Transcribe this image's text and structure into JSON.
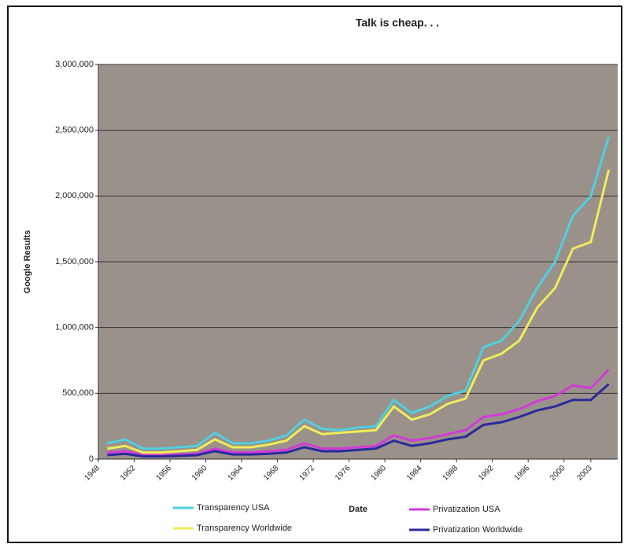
{
  "chart_data": {
    "type": "line",
    "title": "Talk is cheap. . .",
    "x_label": "Date",
    "y_label": "Google Results",
    "x": [
      1949,
      1951,
      1953,
      1955,
      1957,
      1959,
      1961,
      1963,
      1965,
      1967,
      1969,
      1971,
      1973,
      1975,
      1977,
      1979,
      1981,
      1983,
      1985,
      1987,
      1989,
      1991,
      1993,
      1995,
      1997,
      1999,
      2001,
      2003,
      2005
    ],
    "xlim": [
      1948,
      2006
    ],
    "xticks": [
      1948,
      1952,
      1956,
      1960,
      1964,
      1968,
      1972,
      1976,
      1980,
      1984,
      1988,
      1992,
      1996,
      2000,
      2003
    ],
    "ylim": [
      0,
      3000000
    ],
    "yticks": [
      0,
      {
        "value": 500000,
        "label": "500,000"
      },
      {
        "value": 1000000,
        "label": "1,000,000"
      },
      {
        "value": 1500000,
        "label": "1,500,000"
      },
      {
        "value": 2000000,
        "label": "2,000,000"
      },
      {
        "value": 2500000,
        "label": "2,500,000"
      },
      {
        "value": 3000000,
        "label": "3,000,000"
      }
    ],
    "grid": true,
    "series": [
      {
        "name": "Transparency USA",
        "color": "#4fd0e0",
        "values": [
          120000,
          150000,
          80000,
          80000,
          90000,
          100000,
          200000,
          120000,
          120000,
          140000,
          180000,
          300000,
          230000,
          220000,
          240000,
          250000,
          450000,
          350000,
          400000,
          480000,
          520000,
          850000,
          900000,
          1050000,
          1300000,
          1500000,
          1850000,
          2000000,
          2450000
        ]
      },
      {
        "name": "Transparency Worldwide",
        "color": "#f0ec5a",
        "values": [
          80000,
          100000,
          50000,
          50000,
          60000,
          70000,
          150000,
          90000,
          90000,
          110000,
          140000,
          250000,
          190000,
          200000,
          210000,
          220000,
          400000,
          300000,
          340000,
          420000,
          460000,
          750000,
          800000,
          900000,
          1150000,
          1300000,
          1600000,
          1650000,
          2200000
        ]
      },
      {
        "name": "Privatization USA",
        "color": "#d23ad8",
        "values": [
          50000,
          60000,
          30000,
          30000,
          35000,
          40000,
          80000,
          50000,
          50000,
          60000,
          70000,
          120000,
          80000,
          80000,
          90000,
          100000,
          180000,
          140000,
          160000,
          190000,
          220000,
          320000,
          340000,
          380000,
          440000,
          480000,
          560000,
          540000,
          680000
        ]
      },
      {
        "name": "Privatization Worldwide",
        "color": "#2a2a9a",
        "values": [
          30000,
          40000,
          20000,
          20000,
          25000,
          30000,
          60000,
          35000,
          35000,
          40000,
          50000,
          90000,
          60000,
          60000,
          70000,
          80000,
          140000,
          100000,
          120000,
          150000,
          170000,
          260000,
          280000,
          320000,
          370000,
          400000,
          450000,
          450000,
          570000
        ]
      }
    ]
  }
}
